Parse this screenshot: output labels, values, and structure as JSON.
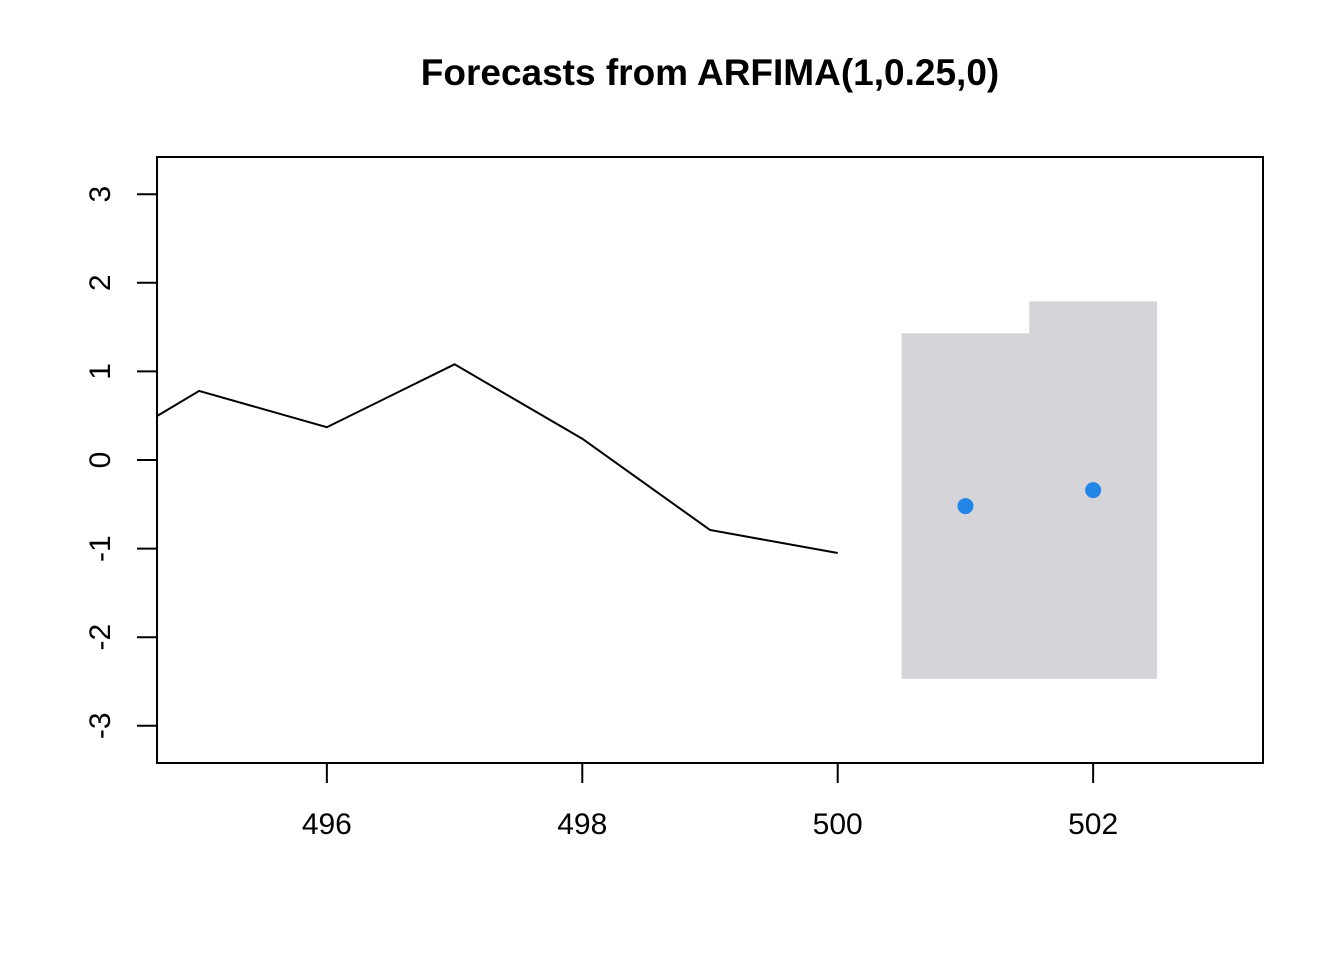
{
  "chart_data": {
    "type": "line",
    "title": "Forecasts from ARFIMA(1,0.25,0)",
    "xlabel": "",
    "ylabel": "",
    "xlim": [
      494.67,
      503.33
    ],
    "ylim": [
      -3.42,
      3.42
    ],
    "xticks": [
      496,
      498,
      500,
      502
    ],
    "yticks": [
      -3,
      -2,
      -1,
      0,
      1,
      2,
      3
    ],
    "series": [
      {
        "x": [
          494.5,
          495,
          496,
          497,
          498,
          499,
          500
        ],
        "y": [
          0.35,
          0.78,
          0.37,
          1.08,
          0.24,
          -0.79,
          -1.05
        ]
      }
    ],
    "forecast": {
      "x": [
        501,
        502
      ],
      "mean": [
        -0.52,
        -0.34
      ],
      "lower": [
        -2.47,
        -2.47
      ],
      "upper": [
        1.43,
        1.79
      ]
    },
    "colors": {
      "line": "#000000",
      "forecast_point": "#2285e8",
      "interval": "#d4d4d9"
    },
    "grid": false,
    "legend": "none"
  }
}
